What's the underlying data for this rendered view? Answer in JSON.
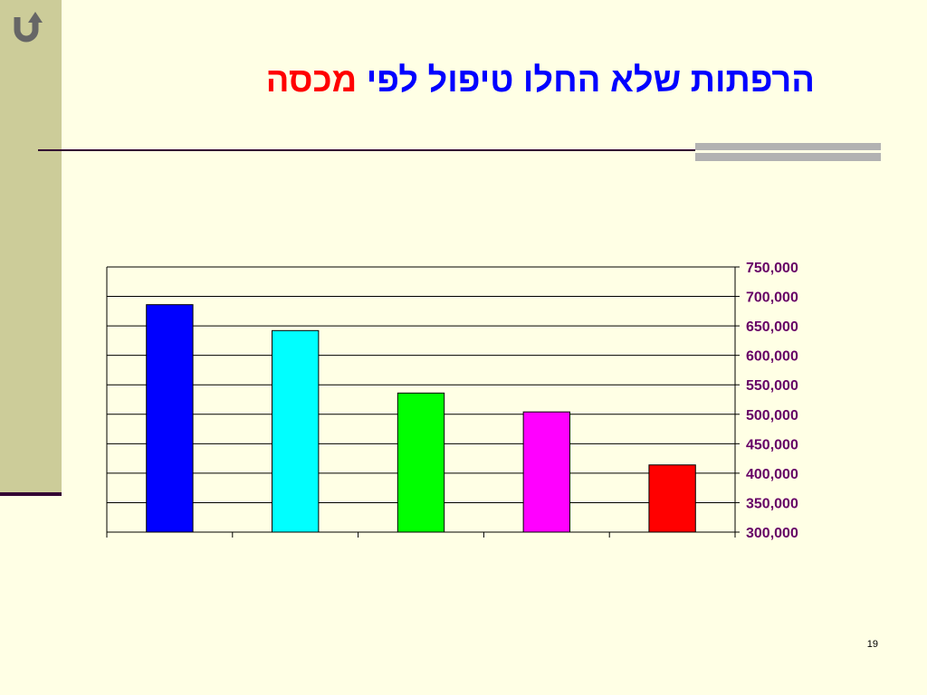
{
  "slide": {
    "title_main": "הרפתות שלא החלו טיפול לפי",
    "title_accent": "מכסה",
    "page_number": "19"
  },
  "navigation": {
    "back_icon": "u-turn-arrow-icon"
  },
  "colors": {
    "background": "#FFFFE5",
    "title": "#0000FF",
    "title_accent": "#FF0000",
    "axis_labels": "#660066"
  },
  "chart_data": {
    "type": "bar",
    "categories": [
      "",
      "",
      "",
      "",
      ""
    ],
    "values": [
      686000,
      642000,
      536000,
      504000,
      414000
    ],
    "colors": [
      "#0000FF",
      "#00FFFF",
      "#00FF00",
      "#FF00FF",
      "#FF0000"
    ],
    "ylim": [
      300000,
      750000
    ],
    "ytick_step": 50000,
    "ytick_labels": [
      "300,000",
      "350,000",
      "400,000",
      "450,000",
      "500,000",
      "550,000",
      "600,000",
      "650,000",
      "700,000",
      "750,000"
    ],
    "yaxis_position": "right",
    "grid": true,
    "legend": "none"
  }
}
